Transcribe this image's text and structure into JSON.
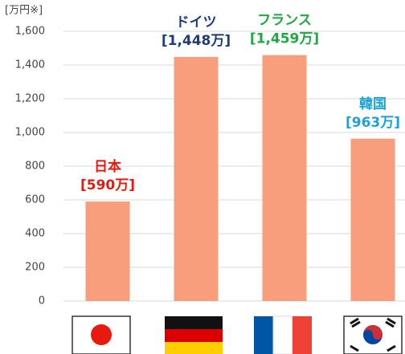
{
  "chart_data": {
    "type": "bar",
    "unit_label": "[万円※]",
    "categories": [
      "日本",
      "ドイツ",
      "フランス",
      "韓国"
    ],
    "values": [
      590,
      1448,
      1459,
      963
    ],
    "value_labels": [
      "[590万]",
      "[1,448万]",
      "[1,459万]",
      "[963万]"
    ],
    "label_colors": [
      "#e8190e",
      "#1f3d7a",
      "#1fa843",
      "#1aa3d9"
    ],
    "color": "#f99e7c",
    "ylim": [
      0,
      1600
    ],
    "yticks": [
      0,
      200,
      400,
      600,
      800,
      {
        "value": 1000,
        "label": "1,000"
      },
      {
        "value": 1200,
        "label": "1,200"
      },
      {
        "value": 1400,
        "label": "1,400"
      },
      {
        "value": 1600,
        "label": "1,600"
      }
    ],
    "grid": true
  }
}
